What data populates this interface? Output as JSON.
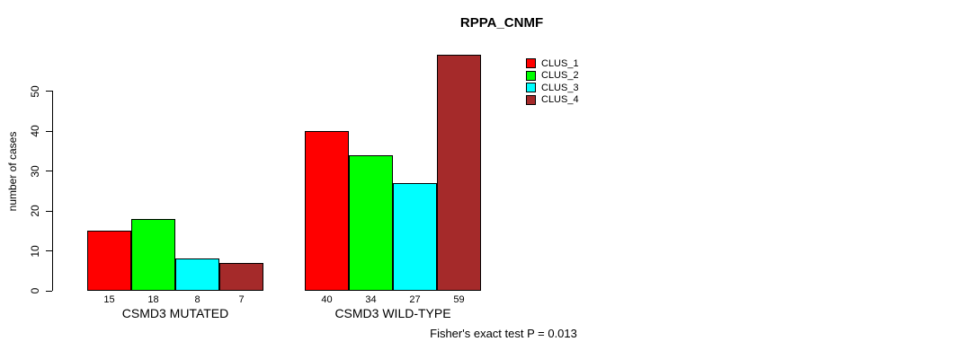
{
  "title": "RPPA_CNMF",
  "footer": "Fisher's exact test P = 0.013",
  "chart_data": {
    "type": "bar",
    "title": "RPPA_CNMF",
    "xlabel": "",
    "ylabel": "number of cases",
    "categories": [
      "CSMD3 MUTATED",
      "CSMD3 WILD-TYPE"
    ],
    "series": [
      {
        "name": "CLUS_1",
        "color": "#ff0000",
        "values": [
          15,
          40
        ]
      },
      {
        "name": "CLUS_2",
        "color": "#00ff00",
        "values": [
          18,
          34
        ]
      },
      {
        "name": "CLUS_3",
        "color": "#00ffff",
        "values": [
          8,
          27
        ]
      },
      {
        "name": "CLUS_4",
        "color": "#a52a2a",
        "values": [
          7,
          59
        ]
      }
    ],
    "bar_labels": [
      [
        15,
        18,
        8,
        7
      ],
      [
        40,
        34,
        27,
        59
      ]
    ],
    "y_ticks": [
      0,
      10,
      20,
      30,
      40,
      50
    ],
    "ylim": [
      0,
      59
    ],
    "grid": false,
    "background": "#ffffff",
    "legend_position": "top-right",
    "annotation": "Fisher's exact test P = 0.013"
  }
}
